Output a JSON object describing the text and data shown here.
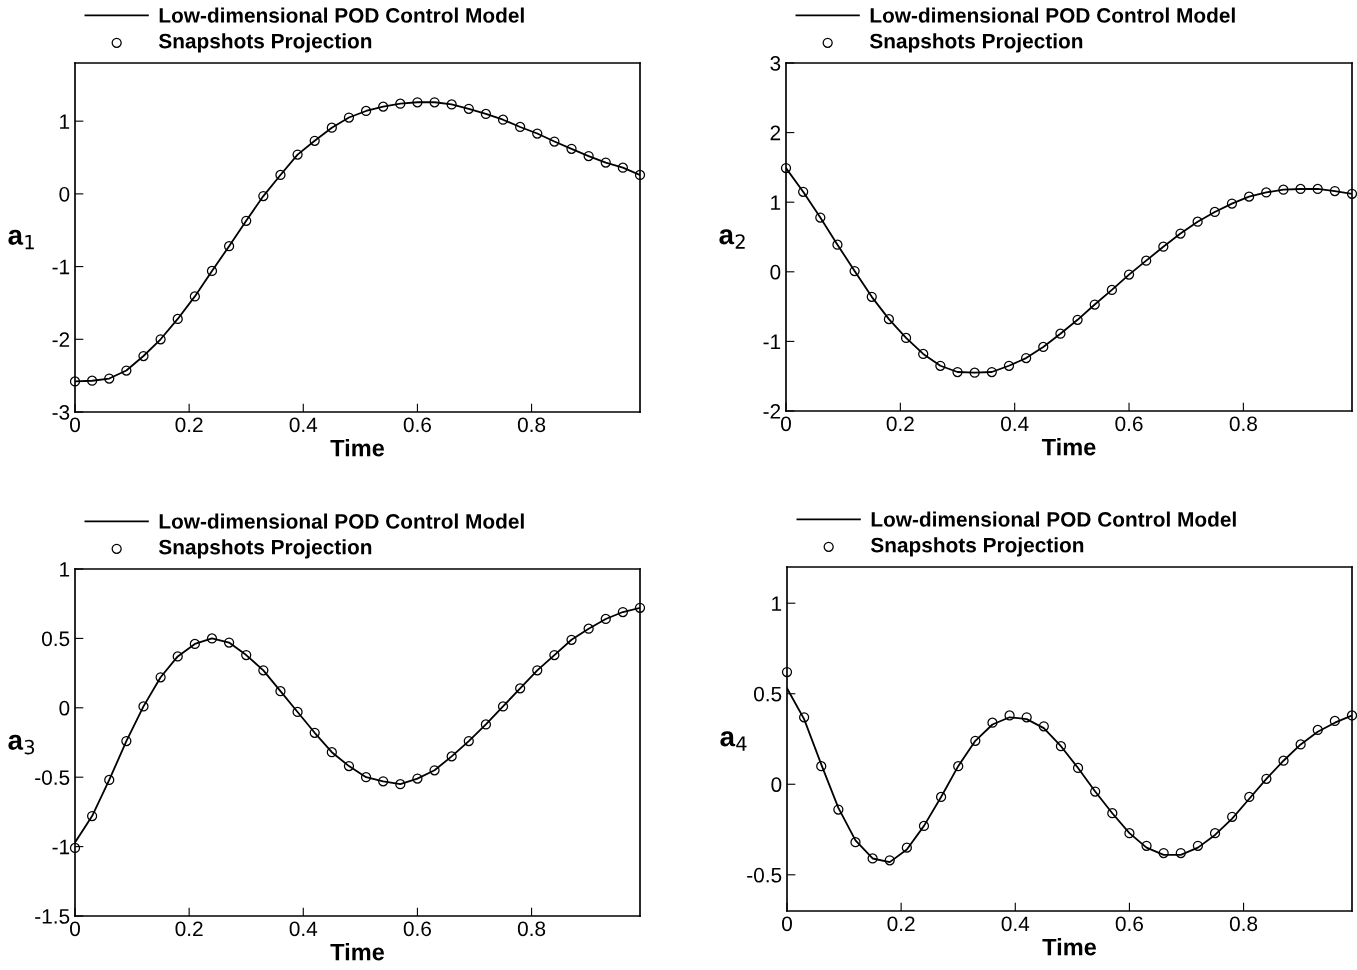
{
  "chart_data": [
    {
      "type": "line",
      "xlabel": "Time",
      "ylabel": "a$_{1}$",
      "xlim": [
        0,
        0.99
      ],
      "ylim": [
        -3,
        1.8
      ],
      "xticks": [
        0,
        0.2,
        0.4,
        0.6,
        0.8
      ],
      "yticks": [
        -3,
        -2,
        -1,
        0,
        1
      ],
      "legend": "top",
      "x": [
        0,
        0.03,
        0.06,
        0.09,
        0.12,
        0.15,
        0.18,
        0.21,
        0.24,
        0.27,
        0.3,
        0.33,
        0.36,
        0.39,
        0.42,
        0.45,
        0.48,
        0.51,
        0.54,
        0.57,
        0.6,
        0.63,
        0.66,
        0.69,
        0.72,
        0.75,
        0.78,
        0.81,
        0.84,
        0.87,
        0.9,
        0.93,
        0.96,
        0.99
      ],
      "series": [
        {
          "name": "Low-dimensional POD Control Model",
          "type": "line",
          "color": "#000000",
          "marker": "none",
          "line_style": "solid",
          "values": [
            -2.58,
            -2.57,
            -2.54,
            -2.43,
            -2.23,
            -2.0,
            -1.72,
            -1.41,
            -1.06,
            -0.72,
            -0.37,
            -0.03,
            0.26,
            0.54,
            0.73,
            0.91,
            1.05,
            1.14,
            1.2,
            1.24,
            1.26,
            1.26,
            1.23,
            1.17,
            1.1,
            1.02,
            0.92,
            0.83,
            0.72,
            0.62,
            0.52,
            0.43,
            0.36,
            0.26
          ]
        },
        {
          "name": "Snapshots Projection",
          "type": "scatter",
          "color": "#000000",
          "marker": "circle",
          "values": [
            -2.58,
            -2.57,
            -2.54,
            -2.43,
            -2.23,
            -2.0,
            -1.72,
            -1.41,
            -1.06,
            -0.72,
            -0.37,
            -0.03,
            0.26,
            0.54,
            0.73,
            0.91,
            1.05,
            1.14,
            1.2,
            1.24,
            1.26,
            1.26,
            1.23,
            1.17,
            1.1,
            1.02,
            0.92,
            0.83,
            0.72,
            0.62,
            0.52,
            0.43,
            0.36,
            0.26
          ]
        }
      ]
    },
    {
      "type": "line",
      "xlabel": "Time",
      "ylabel": "a$_{2}$",
      "xlim": [
        0,
        0.99
      ],
      "ylim": [
        -2,
        3
      ],
      "xticks": [
        0,
        0.2,
        0.4,
        0.6,
        0.8
      ],
      "yticks": [
        -2,
        -1,
        0,
        1,
        2,
        3
      ],
      "legend": "top",
      "x": [
        0,
        0.03,
        0.06,
        0.09,
        0.12,
        0.15,
        0.18,
        0.21,
        0.24,
        0.27,
        0.3,
        0.33,
        0.36,
        0.39,
        0.42,
        0.45,
        0.48,
        0.51,
        0.54,
        0.57,
        0.6,
        0.63,
        0.66,
        0.69,
        0.72,
        0.75,
        0.78,
        0.81,
        0.84,
        0.87,
        0.9,
        0.93,
        0.96,
        0.99
      ],
      "series": [
        {
          "name": "Low-dimensional POD Control Model",
          "type": "line",
          "color": "#000000",
          "marker": "none",
          "line_style": "solid",
          "values": [
            1.49,
            1.15,
            0.78,
            0.39,
            0.01,
            -0.36,
            -0.68,
            -0.95,
            -1.18,
            -1.35,
            -1.44,
            -1.45,
            -1.44,
            -1.35,
            -1.24,
            -1.08,
            -0.89,
            -0.69,
            -0.47,
            -0.26,
            -0.04,
            0.16,
            0.36,
            0.55,
            0.72,
            0.86,
            0.98,
            1.08,
            1.14,
            1.18,
            1.19,
            1.19,
            1.16,
            1.12
          ]
        },
        {
          "name": "Snapshots Projection",
          "type": "scatter",
          "color": "#000000",
          "marker": "circle",
          "values": [
            1.49,
            1.15,
            0.78,
            0.39,
            0.01,
            -0.36,
            -0.68,
            -0.95,
            -1.18,
            -1.35,
            -1.44,
            -1.45,
            -1.44,
            -1.35,
            -1.24,
            -1.08,
            -0.89,
            -0.69,
            -0.47,
            -0.26,
            -0.04,
            0.16,
            0.36,
            0.55,
            0.72,
            0.86,
            0.98,
            1.08,
            1.14,
            1.18,
            1.19,
            1.19,
            1.16,
            1.12
          ]
        }
      ]
    },
    {
      "type": "line",
      "xlabel": "Time",
      "ylabel": "a$_{3}$",
      "xlim": [
        0,
        0.99
      ],
      "ylim": [
        -1.5,
        1
      ],
      "xticks": [
        0,
        0.2,
        0.4,
        0.6,
        0.8
      ],
      "yticks": [
        -1.5,
        -1,
        -0.5,
        0,
        0.5,
        1
      ],
      "legend": "top",
      "x": [
        0,
        0.03,
        0.06,
        0.09,
        0.12,
        0.15,
        0.18,
        0.21,
        0.24,
        0.27,
        0.3,
        0.33,
        0.36,
        0.39,
        0.42,
        0.45,
        0.48,
        0.51,
        0.54,
        0.57,
        0.6,
        0.63,
        0.66,
        0.69,
        0.72,
        0.75,
        0.78,
        0.81,
        0.84,
        0.87,
        0.9,
        0.93,
        0.96,
        0.99
      ],
      "series": [
        {
          "name": "Low-dimensional POD Control Model",
          "type": "line",
          "color": "#000000",
          "marker": "none",
          "line_style": "solid",
          "values": [
            -0.97,
            -0.78,
            -0.52,
            -0.24,
            0.01,
            0.22,
            0.37,
            0.46,
            0.5,
            0.47,
            0.38,
            0.27,
            0.12,
            -0.03,
            -0.18,
            -0.32,
            -0.42,
            -0.5,
            -0.53,
            -0.55,
            -0.51,
            -0.45,
            -0.35,
            -0.24,
            -0.12,
            0.01,
            0.14,
            0.27,
            0.38,
            0.49,
            0.57,
            0.64,
            0.69,
            0.72
          ]
        },
        {
          "name": "Snapshots Projection",
          "type": "scatter",
          "color": "#000000",
          "marker": "circle",
          "values": [
            -1.01,
            -0.78,
            -0.52,
            -0.24,
            0.01,
            0.22,
            0.37,
            0.46,
            0.5,
            0.47,
            0.38,
            0.27,
            0.12,
            -0.03,
            -0.18,
            -0.32,
            -0.42,
            -0.5,
            -0.53,
            -0.55,
            -0.51,
            -0.45,
            -0.35,
            -0.24,
            -0.12,
            0.01,
            0.14,
            0.27,
            0.38,
            0.49,
            0.57,
            0.64,
            0.69,
            0.72
          ]
        }
      ]
    },
    {
      "type": "line",
      "xlabel": "Time",
      "ylabel": "a$_{4}$",
      "xlim": [
        0,
        0.99
      ],
      "ylim": [
        -0.7,
        1.2
      ],
      "xticks": [
        0,
        0.2,
        0.4,
        0.6,
        0.8
      ],
      "yticks": [
        -0.5,
        0,
        0.5,
        1
      ],
      "legend": "top",
      "x": [
        0,
        0.03,
        0.06,
        0.09,
        0.12,
        0.15,
        0.18,
        0.21,
        0.24,
        0.27,
        0.3,
        0.33,
        0.36,
        0.39,
        0.42,
        0.45,
        0.48,
        0.51,
        0.54,
        0.57,
        0.6,
        0.63,
        0.66,
        0.69,
        0.72,
        0.75,
        0.78,
        0.81,
        0.84,
        0.87,
        0.9,
        0.93,
        0.96,
        0.99
      ],
      "series": [
        {
          "name": "Low-dimensional POD Control Model",
          "type": "line",
          "color": "#000000",
          "marker": "none",
          "line_style": "solid",
          "values": [
            0.53,
            0.36,
            0.11,
            -0.13,
            -0.31,
            -0.41,
            -0.43,
            -0.36,
            -0.23,
            -0.07,
            0.1,
            0.24,
            0.33,
            0.37,
            0.36,
            0.31,
            0.21,
            0.09,
            -0.04,
            -0.16,
            -0.27,
            -0.35,
            -0.39,
            -0.39,
            -0.35,
            -0.28,
            -0.19,
            -0.08,
            0.03,
            0.13,
            0.22,
            0.29,
            0.34,
            0.38
          ]
        },
        {
          "name": "Snapshots Projection",
          "type": "scatter",
          "color": "#000000",
          "marker": "circle",
          "values": [
            0.62,
            0.37,
            0.1,
            -0.14,
            -0.32,
            -0.41,
            -0.42,
            -0.35,
            -0.23,
            -0.07,
            0.1,
            0.24,
            0.34,
            0.38,
            0.37,
            0.32,
            0.21,
            0.09,
            -0.04,
            -0.16,
            -0.27,
            -0.34,
            -0.38,
            -0.38,
            -0.34,
            -0.27,
            -0.18,
            -0.07,
            0.03,
            0.13,
            0.22,
            0.3,
            0.35,
            0.38
          ]
        }
      ]
    }
  ]
}
